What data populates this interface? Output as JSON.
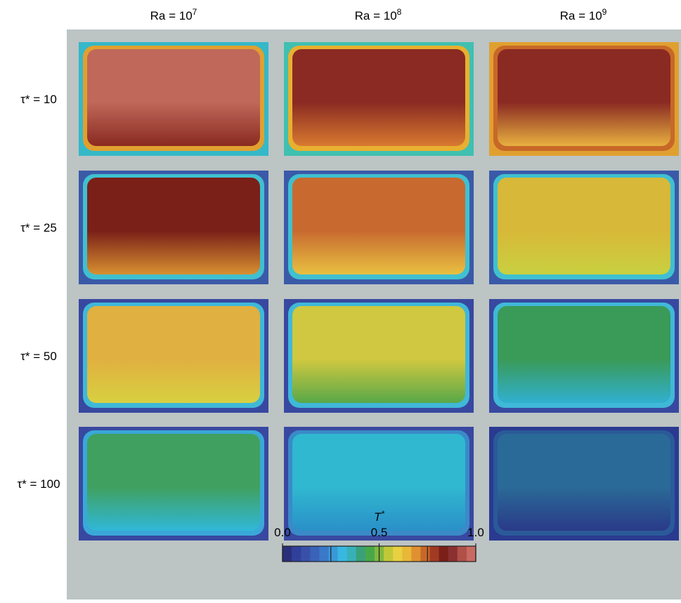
{
  "columns": [
    {
      "base": "Ra = 10",
      "exp": "7"
    },
    {
      "base": "Ra = 10",
      "exp": "8"
    },
    {
      "base": "Ra = 10",
      "exp": "9"
    }
  ],
  "rows": [
    "τ* = 10",
    "τ* = 25",
    "τ* = 50",
    "τ* = 100"
  ],
  "colorbar": {
    "label": "T",
    "label_sup": "*",
    "range": [
      0,
      1
    ],
    "ticks": [
      {
        "value": 0,
        "label": "0.0"
      },
      0.5,
      {
        "value": 1,
        "label": "1.0"
      }
    ],
    "minor_ticks": [
      0.25,
      0.75
    ],
    "colors": [
      "#2a2f7a",
      "#30409a",
      "#3850a8",
      "#3a62b8",
      "#3a78c8",
      "#3a98d8",
      "#38b8e0",
      "#38b0b8",
      "#3aa078",
      "#48a848",
      "#80b840",
      "#c0c838",
      "#e8d040",
      "#e8b838",
      "#e09030",
      "#c86828",
      "#a03a22",
      "#7a2018",
      "#8a3030",
      "#b05048",
      "#c86a62"
    ]
  }
}
